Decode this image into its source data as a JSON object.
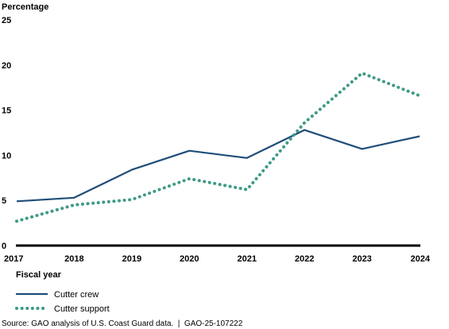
{
  "chart_data": {
    "type": "line",
    "ylabel": "Percentage",
    "xlabel": "Fiscal year",
    "ylim": [
      0,
      25
    ],
    "yticks": [
      "0",
      "5",
      "10",
      "15",
      "20",
      "25"
    ],
    "categories": [
      "2017",
      "2018",
      "2019",
      "2020",
      "2021",
      "2022",
      "2023",
      "2024"
    ],
    "grid": false,
    "legend_position": "bottom-left",
    "series": [
      {
        "name": "Cutter crew",
        "style": "solid",
        "color": "#1f4e79",
        "values": [
          4.9,
          5.3,
          8.4,
          10.5,
          9.7,
          12.8,
          10.7,
          12.1
        ]
      },
      {
        "name": "Cutter support",
        "style": "dotted",
        "color": "#3f9a86",
        "values": [
          2.7,
          4.5,
          5.1,
          7.4,
          6.2,
          13.6,
          19.1,
          16.6
        ]
      }
    ]
  },
  "source_note": "Source: GAO analysis of U.S. Coast Guard data.  |  GAO-25-107222"
}
